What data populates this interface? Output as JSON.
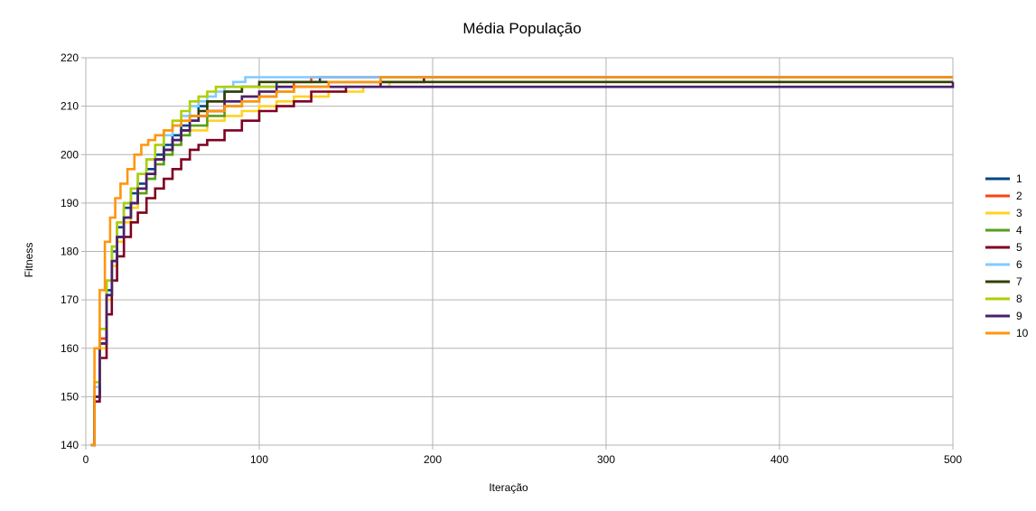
{
  "chart_data": {
    "type": "line",
    "title": "Média População",
    "xlabel": "Iteração",
    "ylabel": "Fitness",
    "xlim": [
      0,
      500
    ],
    "ylim": [
      140,
      220
    ],
    "xticks": [
      0,
      100,
      200,
      300,
      400,
      500
    ],
    "yticks": [
      140,
      150,
      160,
      170,
      180,
      190,
      200,
      210,
      220
    ],
    "grid": true,
    "legend": "right",
    "series": [
      {
        "name": "1",
        "color": "#004586",
        "points": [
          [
            3,
            140
          ],
          [
            5,
            150
          ],
          [
            8,
            162
          ],
          [
            12,
            172
          ],
          [
            15,
            180
          ],
          [
            18,
            185
          ],
          [
            22,
            189
          ],
          [
            26,
            192
          ],
          [
            30,
            194
          ],
          [
            35,
            197
          ],
          [
            40,
            200
          ],
          [
            45,
            202
          ],
          [
            50,
            204
          ],
          [
            55,
            206
          ],
          [
            60,
            208
          ],
          [
            65,
            210
          ],
          [
            70,
            211
          ],
          [
            80,
            213
          ],
          [
            90,
            214
          ],
          [
            110,
            215
          ],
          [
            130,
            215
          ],
          [
            135,
            216
          ],
          [
            500,
            216
          ]
        ]
      },
      {
        "name": "2",
        "color": "#ff420e",
        "points": [
          [
            3,
            140
          ],
          [
            5,
            150
          ],
          [
            8,
            162
          ],
          [
            12,
            171
          ],
          [
            15,
            178
          ],
          [
            18,
            183
          ],
          [
            22,
            187
          ],
          [
            26,
            190
          ],
          [
            30,
            193
          ],
          [
            35,
            196
          ],
          [
            40,
            199
          ],
          [
            45,
            201
          ],
          [
            50,
            203
          ],
          [
            55,
            205
          ],
          [
            60,
            207
          ],
          [
            65,
            208
          ],
          [
            70,
            209
          ],
          [
            80,
            211
          ],
          [
            90,
            212
          ],
          [
            100,
            213
          ],
          [
            110,
            214
          ],
          [
            120,
            215
          ],
          [
            130,
            216
          ],
          [
            500,
            216
          ]
        ]
      },
      {
        "name": "3",
        "color": "#ffd320",
        "points": [
          [
            3,
            140
          ],
          [
            5,
            150
          ],
          [
            8,
            160
          ],
          [
            12,
            170
          ],
          [
            15,
            177
          ],
          [
            18,
            182
          ],
          [
            22,
            186
          ],
          [
            26,
            189
          ],
          [
            30,
            192
          ],
          [
            35,
            195
          ],
          [
            40,
            198
          ],
          [
            45,
            200
          ],
          [
            50,
            202
          ],
          [
            55,
            204
          ],
          [
            60,
            205
          ],
          [
            70,
            207
          ],
          [
            80,
            208
          ],
          [
            90,
            209
          ],
          [
            100,
            210
          ],
          [
            110,
            211
          ],
          [
            120,
            212
          ],
          [
            140,
            213
          ],
          [
            160,
            214
          ],
          [
            175,
            215
          ],
          [
            500,
            215
          ]
        ]
      },
      {
        "name": "4",
        "color": "#579d1c",
        "points": [
          [
            3,
            140
          ],
          [
            5,
            150
          ],
          [
            8,
            161
          ],
          [
            12,
            171
          ],
          [
            15,
            178
          ],
          [
            18,
            183
          ],
          [
            22,
            187
          ],
          [
            26,
            190
          ],
          [
            30,
            192
          ],
          [
            35,
            195
          ],
          [
            40,
            198
          ],
          [
            45,
            200
          ],
          [
            50,
            202
          ],
          [
            55,
            204
          ],
          [
            60,
            206
          ],
          [
            70,
            208
          ],
          [
            80,
            210
          ],
          [
            90,
            211
          ],
          [
            100,
            212
          ],
          [
            110,
            213
          ],
          [
            120,
            214
          ],
          [
            140,
            215
          ],
          [
            170,
            216
          ],
          [
            500,
            216
          ]
        ]
      },
      {
        "name": "5",
        "color": "#7e0021",
        "points": [
          [
            3,
            140
          ],
          [
            5,
            149
          ],
          [
            8,
            158
          ],
          [
            12,
            167
          ],
          [
            15,
            174
          ],
          [
            18,
            179
          ],
          [
            22,
            183
          ],
          [
            26,
            186
          ],
          [
            30,
            188
          ],
          [
            35,
            191
          ],
          [
            40,
            193
          ],
          [
            45,
            195
          ],
          [
            50,
            197
          ],
          [
            55,
            199
          ],
          [
            60,
            201
          ],
          [
            65,
            202
          ],
          [
            70,
            203
          ],
          [
            80,
            205
          ],
          [
            90,
            207
          ],
          [
            100,
            209
          ],
          [
            110,
            210
          ],
          [
            120,
            211
          ],
          [
            130,
            213
          ],
          [
            150,
            214
          ],
          [
            170,
            215
          ],
          [
            195,
            216
          ],
          [
            500,
            216
          ]
        ]
      },
      {
        "name": "6",
        "color": "#83caff",
        "points": [
          [
            3,
            140
          ],
          [
            5,
            152
          ],
          [
            8,
            164
          ],
          [
            12,
            174
          ],
          [
            15,
            181
          ],
          [
            18,
            186
          ],
          [
            22,
            190
          ],
          [
            26,
            193
          ],
          [
            30,
            196
          ],
          [
            35,
            199
          ],
          [
            40,
            202
          ],
          [
            45,
            204
          ],
          [
            50,
            206
          ],
          [
            55,
            208
          ],
          [
            60,
            210
          ],
          [
            65,
            211
          ],
          [
            70,
            212
          ],
          [
            75,
            213
          ],
          [
            80,
            214
          ],
          [
            85,
            215
          ],
          [
            92,
            216
          ],
          [
            500,
            216
          ]
        ]
      },
      {
        "name": "7",
        "color": "#314004",
        "points": [
          [
            3,
            140
          ],
          [
            5,
            150
          ],
          [
            8,
            161
          ],
          [
            12,
            171
          ],
          [
            15,
            178
          ],
          [
            18,
            183
          ],
          [
            22,
            187
          ],
          [
            26,
            190
          ],
          [
            30,
            193
          ],
          [
            35,
            196
          ],
          [
            40,
            199
          ],
          [
            45,
            201
          ],
          [
            50,
            203
          ],
          [
            55,
            205
          ],
          [
            60,
            207
          ],
          [
            65,
            209
          ],
          [
            70,
            211
          ],
          [
            80,
            213
          ],
          [
            90,
            214
          ],
          [
            100,
            215
          ],
          [
            500,
            215
          ]
        ]
      },
      {
        "name": "8",
        "color": "#aecf00",
        "points": [
          [
            3,
            140
          ],
          [
            5,
            153
          ],
          [
            8,
            164
          ],
          [
            12,
            174
          ],
          [
            15,
            181
          ],
          [
            18,
            186
          ],
          [
            22,
            190
          ],
          [
            26,
            193
          ],
          [
            30,
            196
          ],
          [
            35,
            199
          ],
          [
            40,
            202
          ],
          [
            45,
            205
          ],
          [
            50,
            207
          ],
          [
            55,
            209
          ],
          [
            60,
            211
          ],
          [
            65,
            212
          ],
          [
            70,
            213
          ],
          [
            75,
            214
          ],
          [
            500,
            214
          ]
        ]
      },
      {
        "name": "9",
        "color": "#4b1f6f",
        "points": [
          [
            3,
            140
          ],
          [
            5,
            150
          ],
          [
            8,
            161
          ],
          [
            12,
            171
          ],
          [
            15,
            178
          ],
          [
            18,
            183
          ],
          [
            22,
            187
          ],
          [
            26,
            190
          ],
          [
            30,
            193
          ],
          [
            35,
            196
          ],
          [
            40,
            199
          ],
          [
            45,
            201
          ],
          [
            50,
            203
          ],
          [
            55,
            205
          ],
          [
            60,
            207
          ],
          [
            65,
            208
          ],
          [
            70,
            209
          ],
          [
            80,
            211
          ],
          [
            90,
            212
          ],
          [
            100,
            213
          ],
          [
            110,
            214
          ],
          [
            498,
            214
          ],
          [
            500,
            215
          ]
        ]
      },
      {
        "name": "10",
        "color": "#ff950e",
        "points": [
          [
            3,
            140
          ],
          [
            5,
            160
          ],
          [
            8,
            172
          ],
          [
            11,
            182
          ],
          [
            14,
            187
          ],
          [
            17,
            191
          ],
          [
            20,
            194
          ],
          [
            24,
            197
          ],
          [
            28,
            200
          ],
          [
            32,
            202
          ],
          [
            36,
            203
          ],
          [
            40,
            204
          ],
          [
            45,
            205
          ],
          [
            50,
            206
          ],
          [
            55,
            207
          ],
          [
            60,
            208
          ],
          [
            70,
            209
          ],
          [
            80,
            210
          ],
          [
            90,
            211
          ],
          [
            100,
            212
          ],
          [
            110,
            213
          ],
          [
            120,
            214
          ],
          [
            140,
            215
          ],
          [
            170,
            216
          ],
          [
            500,
            216
          ]
        ]
      }
    ]
  }
}
